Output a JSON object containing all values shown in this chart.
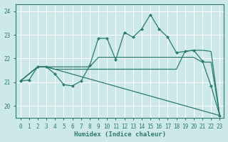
{
  "xlabel": "Humidex (Indice chaleur)",
  "bg_color": "#cde8e8",
  "grid_color": "#b8d8d8",
  "line_color": "#2a7a70",
  "xlim": [
    -0.5,
    23.5
  ],
  "ylim": [
    19.5,
    24.3
  ],
  "yticks": [
    20,
    21,
    22,
    23,
    24
  ],
  "xticks": [
    0,
    1,
    2,
    3,
    4,
    5,
    6,
    7,
    8,
    9,
    10,
    11,
    12,
    13,
    14,
    15,
    16,
    17,
    18,
    19,
    20,
    21,
    22,
    23
  ],
  "lines": [
    {
      "x": [
        0,
        1,
        2,
        3,
        4,
        5,
        6,
        7,
        8,
        9,
        10,
        11,
        12,
        13,
        14,
        15,
        16,
        17,
        18,
        19,
        20,
        21,
        22,
        23
      ],
      "y": [
        21.05,
        21.1,
        21.65,
        21.65,
        21.35,
        20.9,
        20.85,
        21.05,
        21.7,
        22.85,
        22.85,
        21.95,
        23.1,
        22.9,
        23.25,
        23.85,
        23.25,
        22.9,
        22.25,
        22.3,
        22.35,
        21.9,
        20.85,
        19.6
      ],
      "marker": "D",
      "markersize": 2.0,
      "lw": 0.9
    },
    {
      "x": [
        0,
        2,
        3,
        8,
        9,
        10,
        11,
        12,
        13,
        14,
        15,
        16,
        17,
        18,
        19,
        20,
        21,
        22,
        23
      ],
      "y": [
        21.05,
        21.65,
        21.65,
        21.65,
        22.05,
        22.05,
        22.05,
        22.05,
        22.05,
        22.05,
        22.05,
        22.05,
        22.05,
        22.05,
        22.05,
        22.05,
        21.85,
        21.85,
        19.6
      ],
      "marker": null,
      "markersize": 0,
      "lw": 0.9
    },
    {
      "x": [
        0,
        2,
        3,
        4,
        5,
        6,
        7,
        8,
        9,
        10,
        11,
        12,
        13,
        14,
        15,
        16,
        17,
        18,
        19,
        20,
        21,
        22,
        23
      ],
      "y": [
        21.05,
        21.65,
        21.65,
        21.55,
        21.55,
        21.55,
        21.55,
        21.55,
        21.55,
        21.55,
        21.55,
        21.55,
        21.55,
        21.55,
        21.55,
        21.55,
        21.55,
        21.55,
        22.3,
        22.35,
        22.35,
        22.3,
        19.6
      ],
      "marker": null,
      "markersize": 0,
      "lw": 0.9
    },
    {
      "x": [
        0,
        2,
        3,
        23
      ],
      "y": [
        21.05,
        21.65,
        21.65,
        19.6
      ],
      "marker": null,
      "markersize": 0,
      "lw": 0.9
    }
  ]
}
